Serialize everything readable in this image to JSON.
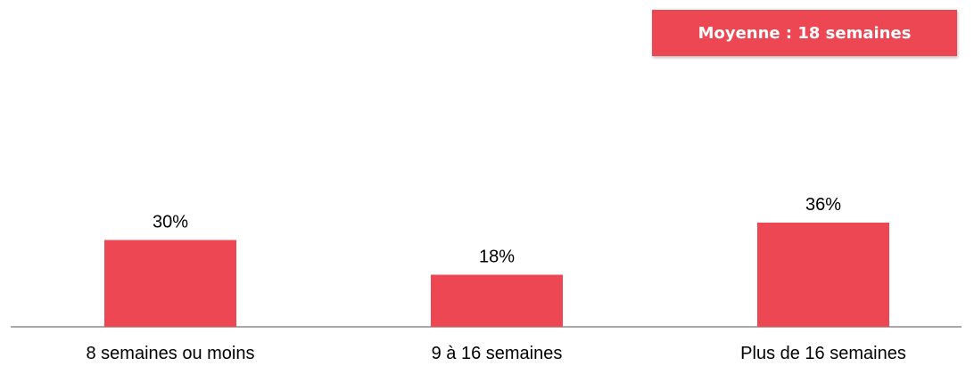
{
  "badge": {
    "text": "Moyenne : 18 semaines"
  },
  "colors": {
    "bar": "#ee4754",
    "axis": "#8c8c8c",
    "badge_bg": "#ee4754",
    "badge_text": "#ffffff"
  },
  "chart_data": {
    "type": "bar",
    "categories": [
      "8 semaines ou moins",
      "9 à 16 semaines",
      "Plus de 16 semaines"
    ],
    "values": [
      30,
      18,
      36
    ],
    "value_labels": [
      "30%",
      "18%",
      "36%"
    ],
    "unit": "%",
    "ylim": [
      0,
      100
    ],
    "grid": false,
    "title": "",
    "xlabel": "",
    "ylabel": ""
  }
}
